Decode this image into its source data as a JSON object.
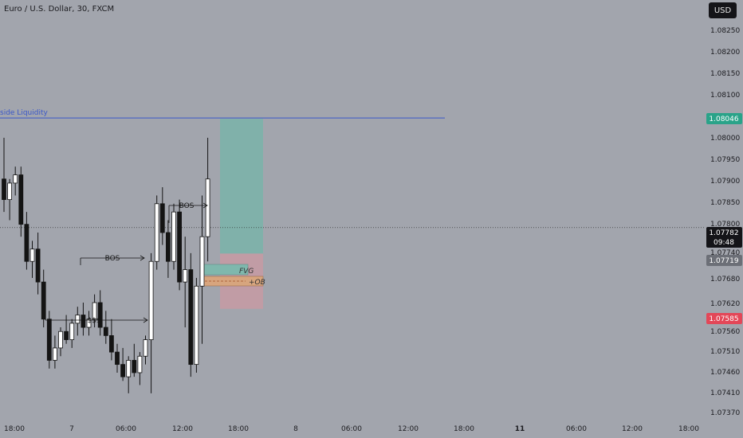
{
  "header": {
    "title": "Euro / U.S. Dollar, 30, FXCM",
    "currency": "USD"
  },
  "colors": {
    "background": "#a2a5ad",
    "candle_up": "#ffffff",
    "candle_down": "#141414",
    "liquidity_line": "#3a57c9",
    "target_zone": "#7ab3a9",
    "stop_zone": "#c79aa3",
    "fvg": "#7fb8ad",
    "order_block": "#d7a57e",
    "label_target": "#2aa389",
    "label_stop": "#e34758",
    "label_current": "#141418",
    "label_entry": "#6c6f77"
  },
  "chart_data": {
    "type": "candlestick",
    "symbol": "Euro / U.S. Dollar",
    "timeframe": "30",
    "source": "FXCM",
    "ylim": [
      1.0734,
      1.083
    ],
    "y_ticks": [
      "1.08250",
      "1.08200",
      "1.08150",
      "1.08100",
      "1.08000",
      "1.07950",
      "1.07900",
      "1.07850",
      "1.07800",
      "1.07740",
      "1.07680",
      "1.07620",
      "1.07560",
      "1.07510",
      "1.07460",
      "1.07410",
      "1.07370"
    ],
    "x_ticks": [
      "18:00",
      "7",
      "06:00",
      "12:00",
      "18:00",
      "8",
      "06:00",
      "12:00",
      "18:00",
      "11",
      "06:00",
      "12:00",
      "18:00"
    ],
    "x_ticks_bold": [
      "11"
    ],
    "candles": [
      {
        "o": 1.079,
        "h": 1.08,
        "l": 1.0782,
        "c": 1.0785
      },
      {
        "o": 1.0785,
        "h": 1.079,
        "l": 1.078,
        "c": 1.0789
      },
      {
        "o": 1.0789,
        "h": 1.0793,
        "l": 1.0786,
        "c": 1.0791
      },
      {
        "o": 1.0791,
        "h": 1.0793,
        "l": 1.0776,
        "c": 1.0779
      },
      {
        "o": 1.0779,
        "h": 1.0782,
        "l": 1.0768,
        "c": 1.077
      },
      {
        "o": 1.077,
        "h": 1.0775,
        "l": 1.0766,
        "c": 1.0773
      },
      {
        "o": 1.0773,
        "h": 1.0777,
        "l": 1.0762,
        "c": 1.0765
      },
      {
        "o": 1.0765,
        "h": 1.0768,
        "l": 1.0754,
        "c": 1.0756
      },
      {
        "o": 1.0756,
        "h": 1.0758,
        "l": 1.0744,
        "c": 1.0746
      },
      {
        "o": 1.0746,
        "h": 1.0752,
        "l": 1.0744,
        "c": 1.0749
      },
      {
        "o": 1.0749,
        "h": 1.0754,
        "l": 1.0747,
        "c": 1.0753
      },
      {
        "o": 1.0753,
        "h": 1.0757,
        "l": 1.075,
        "c": 1.0751
      },
      {
        "o": 1.0751,
        "h": 1.0756,
        "l": 1.0749,
        "c": 1.0755
      },
      {
        "o": 1.0755,
        "h": 1.0759,
        "l": 1.0752,
        "c": 1.0757
      },
      {
        "o": 1.0757,
        "h": 1.076,
        "l": 1.0752,
        "c": 1.0754
      },
      {
        "o": 1.0754,
        "h": 1.0758,
        "l": 1.0752,
        "c": 1.0756
      },
      {
        "o": 1.0756,
        "h": 1.0762,
        "l": 1.0754,
        "c": 1.076
      },
      {
        "o": 1.076,
        "h": 1.0763,
        "l": 1.0752,
        "c": 1.0754
      },
      {
        "o": 1.0754,
        "h": 1.0758,
        "l": 1.075,
        "c": 1.0752
      },
      {
        "o": 1.0752,
        "h": 1.0756,
        "l": 1.0746,
        "c": 1.0748
      },
      {
        "o": 1.0748,
        "h": 1.075,
        "l": 1.0743,
        "c": 1.0745
      },
      {
        "o": 1.0745,
        "h": 1.0749,
        "l": 1.0741,
        "c": 1.0742
      },
      {
        "o": 1.0742,
        "h": 1.0747,
        "l": 1.0738,
        "c": 1.0746
      },
      {
        "o": 1.0746,
        "h": 1.075,
        "l": 1.0742,
        "c": 1.0743
      },
      {
        "o": 1.0743,
        "h": 1.0748,
        "l": 1.074,
        "c": 1.0747
      },
      {
        "o": 1.0747,
        "h": 1.0752,
        "l": 1.0745,
        "c": 1.0751
      },
      {
        "o": 1.0751,
        "h": 1.0772,
        "l": 1.0738,
        "c": 1.077
      },
      {
        "o": 1.077,
        "h": 1.0786,
        "l": 1.0768,
        "c": 1.0784
      },
      {
        "o": 1.0784,
        "h": 1.0788,
        "l": 1.0774,
        "c": 1.0777
      },
      {
        "o": 1.0777,
        "h": 1.078,
        "l": 1.0766,
        "c": 1.077
      },
      {
        "o": 1.077,
        "h": 1.0784,
        "l": 1.0768,
        "c": 1.0782
      },
      {
        "o": 1.0782,
        "h": 1.0785,
        "l": 1.0763,
        "c": 1.0765
      },
      {
        "o": 1.0765,
        "h": 1.0776,
        "l": 1.0754,
        "c": 1.0768
      },
      {
        "o": 1.0768,
        "h": 1.0772,
        "l": 1.0742,
        "c": 1.0745
      },
      {
        "o": 1.0745,
        "h": 1.0766,
        "l": 1.0743,
        "c": 1.0764
      },
      {
        "o": 1.0764,
        "h": 1.0786,
        "l": 1.075,
        "c": 1.0776
      },
      {
        "o": 1.0776,
        "h": 1.08,
        "l": 1.077,
        "c": 1.079
      }
    ],
    "levels": {
      "buy_side_liquidity": 1.08048,
      "current": 1.07782,
      "entry": 1.07719,
      "target": 1.08046,
      "stop": 1.07585,
      "fvg": [
        1.077,
        1.0772
      ],
      "order_block": [
        1.0768,
        1.07695
      ]
    },
    "price_labels": {
      "target": "1.08046",
      "current": "1.07782",
      "countdown": "09:48",
      "entry": "1.07719",
      "stop": "1.07585"
    },
    "annotations": {
      "liquidity": "side Liquidity",
      "bos_1": "BOS",
      "bos_2": "BOS",
      "ssl": "$$$",
      "fvg": "FVG",
      "ob": "+OB"
    }
  }
}
